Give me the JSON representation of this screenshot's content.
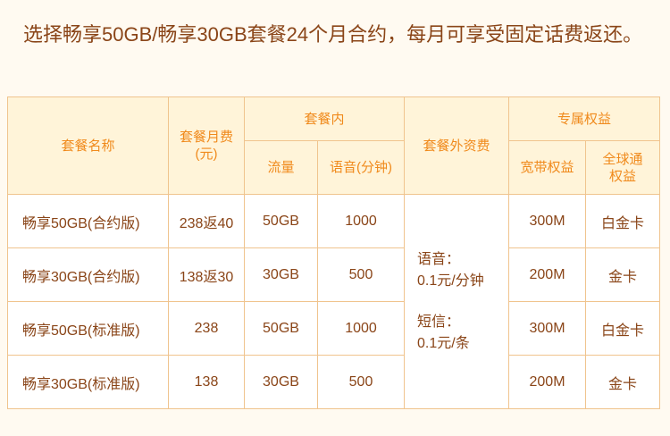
{
  "intro": "选择畅享50GB/畅享30GB套餐24个月合约，每月可享受固定话费返还。",
  "headers": {
    "name": "套餐名称",
    "monthly_fee": "套餐月费",
    "monthly_fee_unit": "(元)",
    "included": "套餐内",
    "data": "流量",
    "voice": "语音(分钟)",
    "extra_fee": "套餐外资费",
    "benefits": "专属权益",
    "broadband": "宽带权益",
    "global_l1": "全球通",
    "global_l2": "权益"
  },
  "extra_fee": {
    "voice_label": "语音：",
    "voice_value": "0.1元/分钟",
    "sms_label": "短信：",
    "sms_value": "0.1元/条"
  },
  "rows": [
    {
      "name": "畅享50GB(合约版)",
      "fee": "238返40",
      "data": "50GB",
      "voice": "1000",
      "broadband": "300M",
      "global": "白金卡"
    },
    {
      "name": "畅享30GB(合约版)",
      "fee": "138返30",
      "data": "30GB",
      "voice": "500",
      "broadband": "200M",
      "global": "金卡"
    },
    {
      "name": "畅享50GB(标准版)",
      "fee": "238",
      "data": "50GB",
      "voice": "1000",
      "broadband": "300M",
      "global": "白金卡"
    },
    {
      "name": "畅享30GB(标准版)",
      "fee": "138",
      "data": "30GB",
      "voice": "500",
      "broadband": "200M",
      "global": "金卡"
    }
  ]
}
